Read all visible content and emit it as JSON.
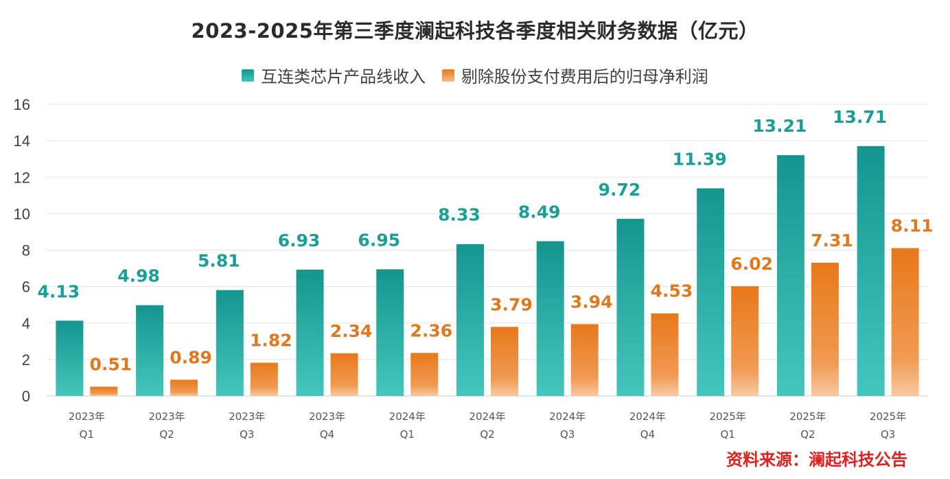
{
  "chart_data": {
    "type": "bar",
    "title": "2023-2025年第三季度澜起科技各季度相关财务数据（亿元）",
    "categories": [
      [
        "2023年",
        "Q1"
      ],
      [
        "2023年",
        "Q2"
      ],
      [
        "2023年",
        "Q3"
      ],
      [
        "2023年",
        "Q4"
      ],
      [
        "2024年",
        "Q1"
      ],
      [
        "2024年",
        "Q2"
      ],
      [
        "2024年",
        "Q3"
      ],
      [
        "2024年",
        "Q4"
      ],
      [
        "2025年",
        "Q1"
      ],
      [
        "2025年",
        "Q2"
      ],
      [
        "2025年",
        "Q3"
      ]
    ],
    "series": [
      {
        "name": "互连类芯片产品线收入",
        "color": "#1a9e98",
        "values": [
          4.13,
          4.98,
          5.81,
          6.93,
          6.95,
          8.33,
          8.49,
          9.72,
          11.39,
          13.21,
          13.71
        ]
      },
      {
        "name": "剔除股份支付费用后的归母净利润",
        "color": "#e0781d",
        "values": [
          0.51,
          0.89,
          1.82,
          2.34,
          2.36,
          3.79,
          3.94,
          4.53,
          6.02,
          7.31,
          8.11
        ]
      }
    ],
    "ylim": [
      0,
      16
    ],
    "yticks": [
      0,
      2,
      4,
      6,
      8,
      10,
      12,
      14,
      16
    ],
    "xlabel": "",
    "ylabel": "",
    "grid": true,
    "legend_position": "top"
  },
  "source": "资料来源：澜起科技公告"
}
